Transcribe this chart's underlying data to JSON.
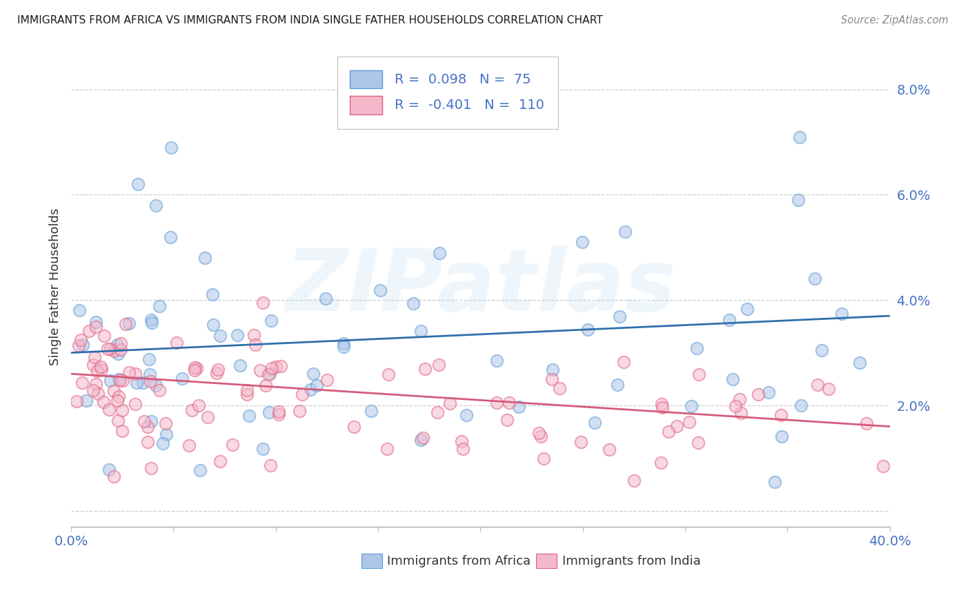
{
  "title": "IMMIGRANTS FROM AFRICA VS IMMIGRANTS FROM INDIA SINGLE FATHER HOUSEHOLDS CORRELATION CHART",
  "source": "Source: ZipAtlas.com",
  "ylabel": "Single Father Households",
  "xmin": 0.0,
  "xmax": 0.4,
  "ymin": -0.003,
  "ymax": 0.088,
  "yticks": [
    0.0,
    0.02,
    0.04,
    0.06,
    0.08
  ],
  "ytick_labels": [
    "",
    "2.0%",
    "4.0%",
    "6.0%",
    "8.0%"
  ],
  "xticks": [
    0.0,
    0.05,
    0.1,
    0.15,
    0.2,
    0.25,
    0.3,
    0.35,
    0.4
  ],
  "africa_color": "#aec6e8",
  "africa_edge_color": "#5b9bd5",
  "india_color": "#f4b8cb",
  "india_edge_color": "#e06080",
  "africa_R": "0.098",
  "africa_N": "75",
  "india_R": "-0.401",
  "india_N": "110",
  "africa_line_color": "#2f6fad",
  "india_line_color": "#d45b7a",
  "legend_africa_label": "Immigrants from Africa",
  "legend_india_label": "Immigrants from India",
  "watermark": "ZIPatlas",
  "background_color": "#ffffff",
  "grid_color": "#cccccc",
  "title_color": "#1a1a1a",
  "label_color": "#444444",
  "right_tick_color": "#4472c4",
  "africa_line_y0": 0.03,
  "africa_line_y1": 0.037,
  "india_line_y0": 0.026,
  "india_line_y1": 0.016
}
